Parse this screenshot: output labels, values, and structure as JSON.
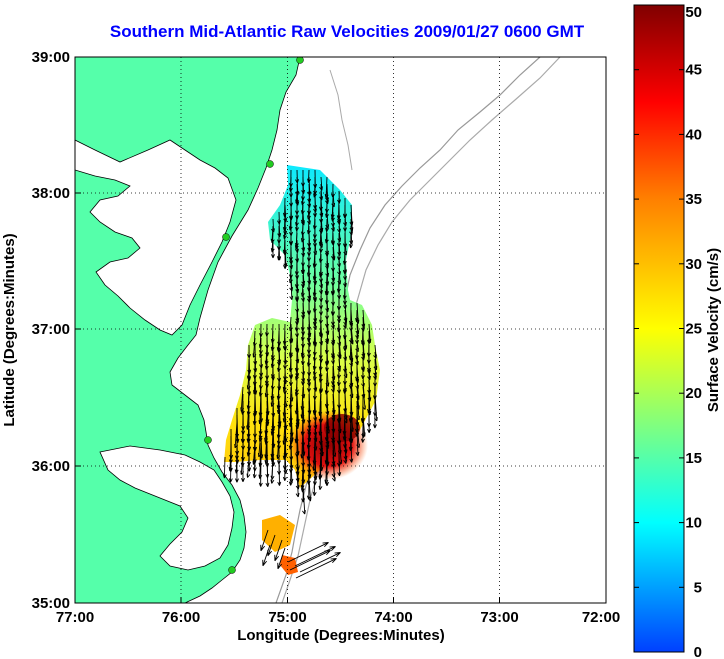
{
  "title": "Southern Mid-Atlantic Raw Velocities 2009/01/27 0600 GMT",
  "x_axis": {
    "label": "Longitude (Degrees:Minutes)",
    "ticks": [
      "77:00",
      "76:00",
      "75:00",
      "74:00",
      "73:00",
      "72:00"
    ]
  },
  "y_axis": {
    "label": "Latitude (Degrees:Minutes)",
    "ticks": [
      "39:00",
      "38:00",
      "37:00",
      "36:00",
      "35:00"
    ]
  },
  "colorbar": {
    "label": "Surface Velocity (cm/s)",
    "ticks": [
      "0",
      "5",
      "10",
      "15",
      "20",
      "25",
      "30",
      "35",
      "40",
      "45",
      "50"
    ],
    "range": [
      0,
      50
    ]
  },
  "colors": {
    "title": "#0000ff",
    "land": "#55ffaa",
    "bathymetry": "#999999",
    "station": "#22cc22"
  }
}
